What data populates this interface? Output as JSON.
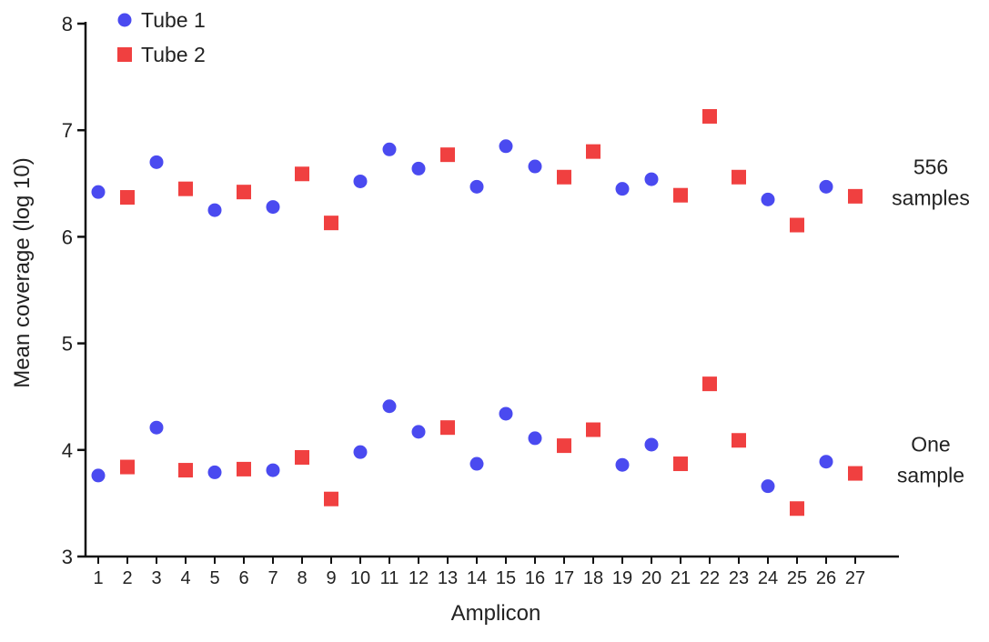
{
  "chart_data": {
    "type": "scatter",
    "xlabel": "Amplicon",
    "ylabel": "Mean coverage (log 10)",
    "ylim": [
      3,
      8
    ],
    "yticks": [
      "3",
      "4",
      "5",
      "6",
      "7",
      "8"
    ],
    "x": [
      1,
      2,
      3,
      4,
      5,
      6,
      7,
      8,
      9,
      10,
      11,
      12,
      13,
      14,
      15,
      16,
      17,
      18,
      19,
      20,
      21,
      22,
      23,
      24,
      25,
      26,
      27
    ],
    "grid": false,
    "legend_position": "top-left",
    "series": [
      {
        "name": "Tube 1",
        "marker": "circle",
        "color": "#4a4af0",
        "groups": [
          {
            "x": [
              1,
              3,
              5,
              7,
              10,
              11,
              12,
              14,
              15,
              16,
              19,
              20,
              24,
              26
            ],
            "y": [
              6.42,
              6.7,
              6.25,
              6.28,
              6.52,
              6.82,
              6.64,
              6.47,
              6.85,
              6.66,
              6.45,
              6.54,
              6.35,
              6.47
            ]
          },
          {
            "x": [
              1,
              3,
              5,
              7,
              10,
              11,
              12,
              14,
              15,
              16,
              19,
              20,
              24,
              26
            ],
            "y": [
              3.76,
              4.21,
              3.79,
              3.81,
              3.98,
              4.41,
              4.17,
              3.87,
              4.34,
              4.11,
              3.86,
              4.05,
              3.66,
              3.89
            ]
          }
        ]
      },
      {
        "name": "Tube 2",
        "marker": "square",
        "color": "#f04040",
        "groups": [
          {
            "x": [
              2,
              4,
              6,
              8,
              9,
              13,
              17,
              18,
              21,
              22,
              23,
              25,
              27
            ],
            "y": [
              6.37,
              6.45,
              6.42,
              6.59,
              6.13,
              6.77,
              6.56,
              6.8,
              6.39,
              7.13,
              6.56,
              6.11,
              6.38
            ]
          },
          {
            "x": [
              2,
              4,
              6,
              8,
              9,
              13,
              17,
              18,
              21,
              22,
              23,
              25,
              27
            ],
            "y": [
              3.84,
              3.81,
              3.82,
              3.93,
              3.54,
              4.21,
              4.04,
              4.19,
              3.87,
              4.62,
              4.09,
              3.45,
              3.78
            ]
          }
        ]
      }
    ],
    "annotations": [
      {
        "lines": [
          "556",
          "samples"
        ],
        "y": 6.45
      },
      {
        "lines": [
          "One",
          "sample"
        ],
        "y": 3.85
      }
    ]
  }
}
